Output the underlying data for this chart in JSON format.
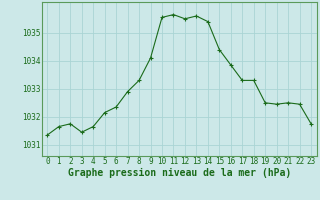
{
  "x": [
    0,
    1,
    2,
    3,
    4,
    5,
    6,
    7,
    8,
    9,
    10,
    11,
    12,
    13,
    14,
    15,
    16,
    17,
    18,
    19,
    20,
    21,
    22,
    23
  ],
  "y": [
    1031.35,
    1031.65,
    1031.75,
    1031.45,
    1031.65,
    1032.15,
    1032.35,
    1032.9,
    1033.3,
    1034.1,
    1035.55,
    1035.65,
    1035.5,
    1035.6,
    1035.4,
    1034.4,
    1033.85,
    1033.3,
    1033.3,
    1032.5,
    1032.45,
    1032.5,
    1032.45,
    1031.75
  ],
  "line_color": "#1a6b1a",
  "marker": "+",
  "marker_size": 3,
  "marker_linewidth": 0.8,
  "line_width": 0.8,
  "bg_color": "#cce8e8",
  "grid_color": "#aad4d4",
  "title": "Graphe pression niveau de la mer (hPa)",
  "ylim_min": 1030.6,
  "ylim_max": 1036.1,
  "xlim_min": -0.5,
  "xlim_max": 23.5,
  "yticks": [
    1031,
    1032,
    1033,
    1034,
    1035
  ],
  "xticks": [
    0,
    1,
    2,
    3,
    4,
    5,
    6,
    7,
    8,
    9,
    10,
    11,
    12,
    13,
    14,
    15,
    16,
    17,
    18,
    19,
    20,
    21,
    22,
    23
  ],
  "tick_color": "#1a6b1a",
  "tick_fontsize": 5.5,
  "title_fontsize": 7,
  "title_color": "#1a6b1a",
  "border_color": "#5a9a5a",
  "spine_linewidth": 0.8
}
